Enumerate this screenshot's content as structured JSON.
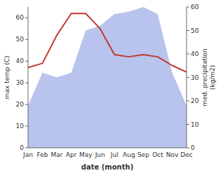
{
  "chart_data": {
    "type": "line",
    "categories": [
      "Jan",
      "Feb",
      "Mar",
      "Apr",
      "May",
      "Jun",
      "Jul",
      "Aug",
      "Sep",
      "Oct",
      "Nov",
      "Dec"
    ],
    "series": [
      {
        "type": "line",
        "color": "#c0392b",
        "values": [
          37,
          39,
          52,
          62,
          62,
          55,
          43,
          42,
          43,
          42,
          38,
          35
        ]
      },
      {
        "type": "area",
        "color": "#b8c4ee",
        "axis": "y2",
        "values": [
          18,
          32,
          30,
          32,
          50,
          52,
          57,
          58,
          60,
          57,
          32,
          18
        ]
      }
    ],
    "xlabel": "date (month)",
    "ylabel": "max temp (C)",
    "y2label": "med. precipitation\n(kg/m2)",
    "ylim": [
      0,
      65
    ],
    "yticks": [
      0,
      10,
      20,
      30,
      40,
      50,
      60
    ],
    "y2lim": [
      0,
      60
    ],
    "y2ticks": [
      0,
      10,
      20,
      30,
      40,
      50,
      60
    ],
    "grid": false
  }
}
